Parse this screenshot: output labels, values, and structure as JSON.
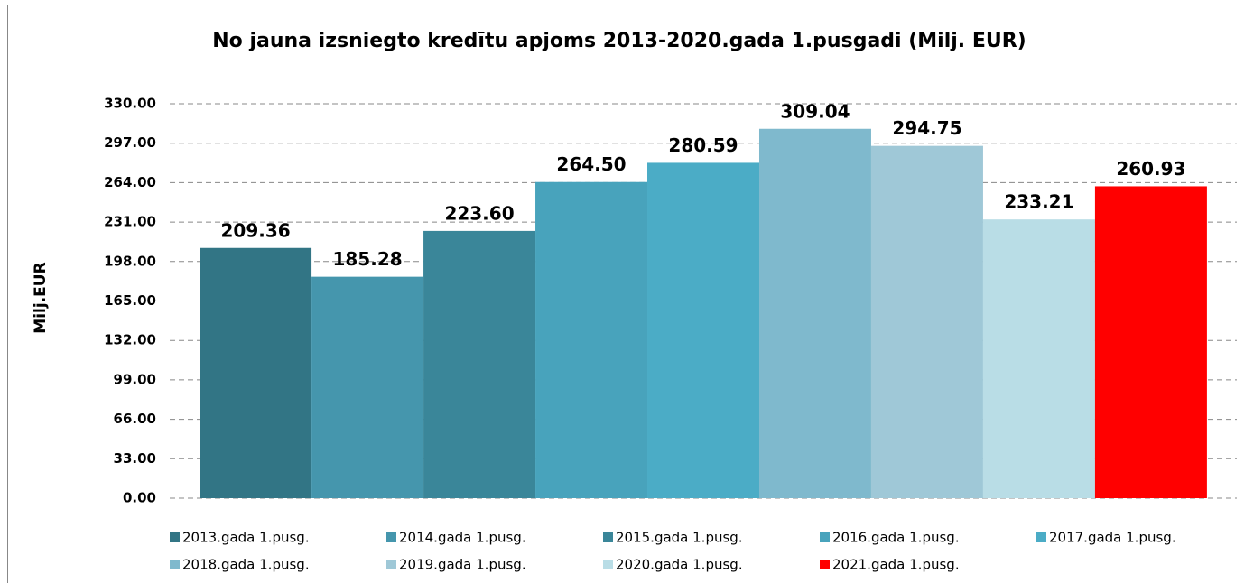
{
  "chart_data": {
    "type": "bar",
    "title": "No jauna izsniegto kredītu apjoms 2013-2020.gada 1.pusgadi (Milj. EUR)",
    "y_label": "Milj.EUR",
    "categories": [
      null
    ],
    "series": [
      {
        "name": "2013.gada 1.pusg.",
        "color": "#327585",
        "values": [
          209.36
        ],
        "value_labels": [
          "209.36"
        ]
      },
      {
        "name": "2014.gada 1.pusg.",
        "color": "#4596ad",
        "values": [
          185.28
        ],
        "value_labels": [
          "185.28"
        ]
      },
      {
        "name": "2015.gada 1.pusg.",
        "color": "#3a8699",
        "values": [
          223.6
        ],
        "value_labels": [
          "223.60"
        ]
      },
      {
        "name": "2016.gada 1.pusg.",
        "color": "#48a3bc",
        "values": [
          264.5
        ],
        "value_labels": [
          "264.50"
        ]
      },
      {
        "name": "2017.gada 1.pusg.",
        "color": "#4bacc6",
        "values": [
          280.59
        ],
        "value_labels": [
          "280.59"
        ]
      },
      {
        "name": "2018.gada 1.pusg.",
        "color": "#7fb9cd",
        "values": [
          309.04
        ],
        "value_labels": [
          "309.04"
        ]
      },
      {
        "name": "2019.gada 1.pusg.",
        "color": "#9fc8d7",
        "values": [
          294.75
        ],
        "value_labels": [
          "294.75"
        ]
      },
      {
        "name": "2020.gada 1.pusg.",
        "color": "#b9dde6",
        "values": [
          233.21
        ],
        "value_labels": [
          "233.21"
        ]
      },
      {
        "name": "2021.gada 1.pusg.",
        "color": "#ff0000",
        "values": [
          260.93
        ],
        "value_labels": [
          "260.93"
        ]
      }
    ],
    "ylim": [
      0,
      330
    ],
    "yticks": [
      {
        "value": 0,
        "label": "0.00"
      },
      {
        "value": 33,
        "label": "33.00"
      },
      {
        "value": 66,
        "label": "66.00"
      },
      {
        "value": 99,
        "label": "99.00"
      },
      {
        "value": 132,
        "label": "132.00"
      },
      {
        "value": 165,
        "label": "165.00"
      },
      {
        "value": 198,
        "label": "198.00"
      },
      {
        "value": 231,
        "label": "231.00"
      },
      {
        "value": 264,
        "label": "264.00"
      },
      {
        "value": 297,
        "label": "297.00"
      },
      {
        "value": 330,
        "label": "330.00"
      }
    ],
    "grid": true,
    "legend": "bottom"
  }
}
